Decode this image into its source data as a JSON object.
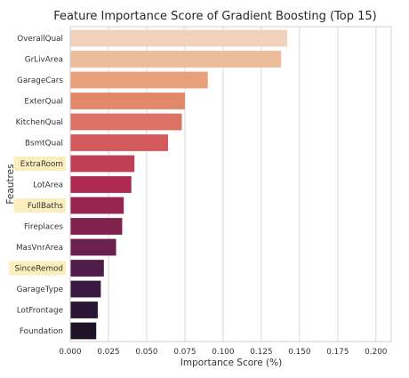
{
  "chart_data": {
    "type": "bar",
    "orientation": "horizontal",
    "title": "Feature Importance Score of Gradient Boosting (Top 15)",
    "xlabel": "Importance Score (%)",
    "ylabel": "Feautres",
    "xlim": [
      0,
      0.21
    ],
    "xticks": [
      "0.000",
      "0.025",
      "0.050",
      "0.075",
      "0.100",
      "0.125",
      "0.150",
      "0.175",
      "0.200"
    ],
    "grid": "vertical",
    "categories": [
      "OverallQual",
      "GrLivArea",
      "GarageCars",
      "ExterQual",
      "KitchenQual",
      "BsmtQual",
      "ExtraRoom",
      "LotArea",
      "FullBaths",
      "Fireplaces",
      "MasVnrArea",
      "SinceRemod",
      "GarageType",
      "LotFrontage",
      "Foundation"
    ],
    "values": [
      0.142,
      0.138,
      0.09,
      0.075,
      0.073,
      0.064,
      0.042,
      0.04,
      0.035,
      0.034,
      0.03,
      0.022,
      0.02,
      0.018,
      0.017
    ],
    "highlighted": [
      "ExtraRoom",
      "FullBaths",
      "SinceRemod"
    ],
    "colors": [
      "#f1d1ba",
      "#edbc9b",
      "#e6a17b",
      "#e2886a",
      "#dc7164",
      "#d25a5c",
      "#c13f55",
      "#ae2a53",
      "#972550",
      "#7f224d",
      "#6c2050",
      "#501c4a",
      "#3a1a40",
      "#2a1634",
      "#1d1226"
    ],
    "highlight_color": "#fbefbd"
  }
}
